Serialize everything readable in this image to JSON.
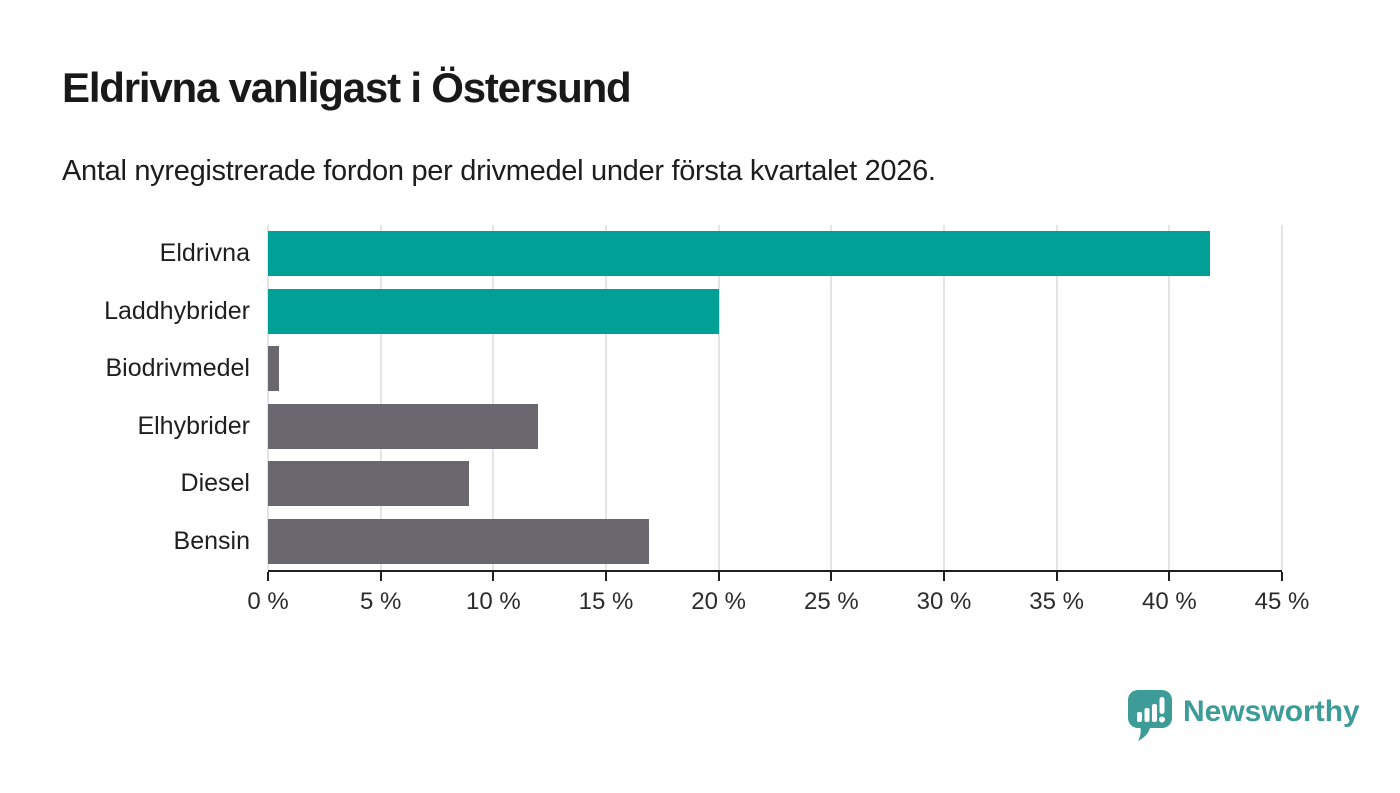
{
  "title": "Eldrivna vanligast i Östersund",
  "subtitle": "Antal nyregistrerade fordon per drivmedel under första kvartalet 2026.",
  "brand": {
    "name": "Newsworthy",
    "color": "#3d9c97",
    "icon": "speech-bubble-bar-chart-icon"
  },
  "colors": {
    "highlight_bar": "#00a096",
    "default_bar": "#6a686e",
    "axis": "#1f1f1f",
    "gridline": "#e4e4e4",
    "text": "#1d1d1d"
  },
  "chart_data": {
    "type": "bar",
    "orientation": "horizontal",
    "title": "Eldrivna vanligast i Östersund",
    "subtitle": "Antal nyregistrerade fordon per drivmedel under första kvartalet 2026.",
    "categories": [
      "Eldrivna",
      "Laddhybrider",
      "Biodrivmedel",
      "Elhybrider",
      "Diesel",
      "Bensin"
    ],
    "values": [
      41.8,
      20.0,
      0.5,
      12.0,
      8.9,
      16.9
    ],
    "unit": "%",
    "bar_colors": [
      "#00a096",
      "#00a096",
      "#6a686e",
      "#6a686e",
      "#6a686e",
      "#6a686e"
    ],
    "highlighted_categories": [
      "Eldrivna",
      "Laddhybrider"
    ],
    "xlim": [
      0,
      45
    ],
    "x_ticks": [
      0,
      5,
      10,
      15,
      20,
      25,
      30,
      35,
      40,
      45
    ],
    "x_tick_labels": [
      "0 %",
      "5 %",
      "10 %",
      "15 %",
      "20 %",
      "25 %",
      "30 %",
      "35 %",
      "40 %",
      "45 %"
    ],
    "grid": true,
    "legend": "none"
  }
}
